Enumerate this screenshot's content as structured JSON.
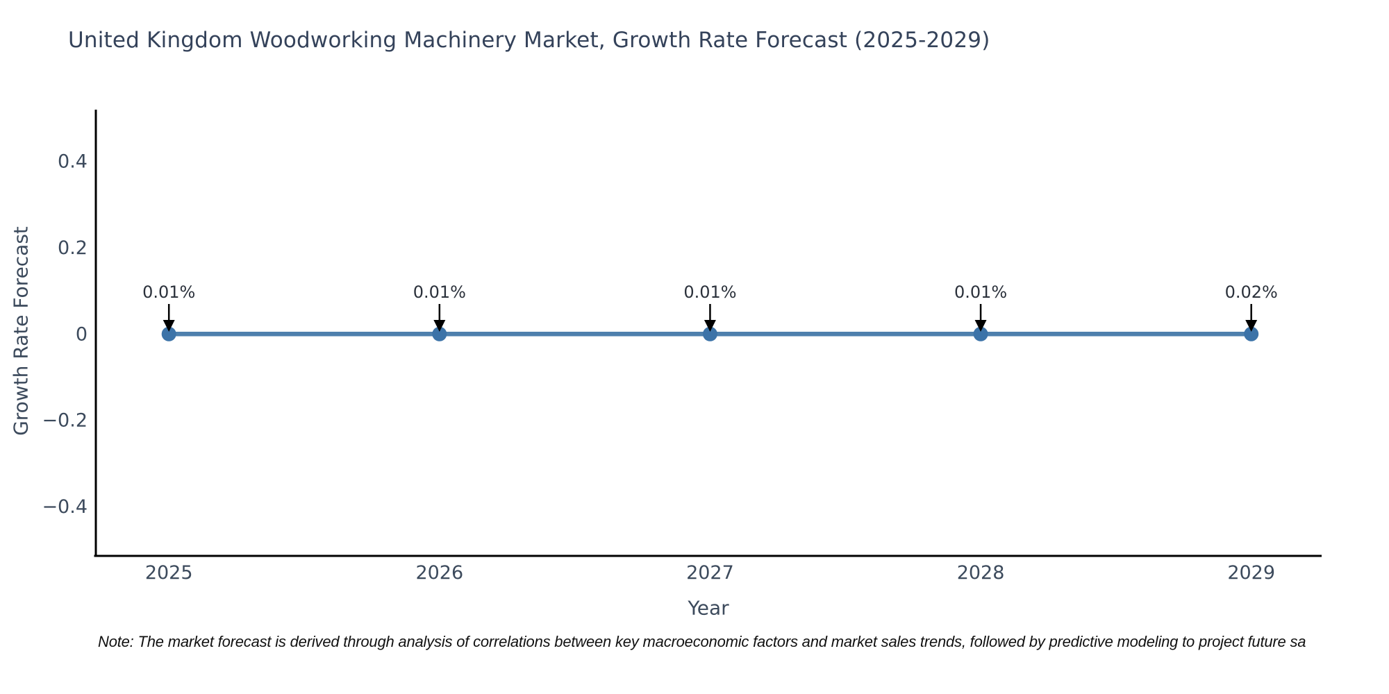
{
  "page": {
    "background": "#ffffff"
  },
  "note": "Note: The market forecast is derived through analysis of correlations between key macroeconomic factors and market sales trends, followed by predictive modeling to project future sa",
  "chart_data": {
    "type": "line",
    "title": "United Kingdom Woodworking Machinery Market, Growth Rate Forecast (2025-2029)",
    "xlabel": "Year",
    "ylabel": "Growth Rate Forecast",
    "x": [
      2025,
      2026,
      2027,
      2028,
      2029
    ],
    "series": [
      {
        "name": "Growth Rate Forecast",
        "values": [
          0.0001,
          0.0001,
          0.0001,
          0.0001,
          0.0002
        ]
      }
    ],
    "point_labels": [
      "0.01%",
      "0.01%",
      "0.01%",
      "0.01%",
      "0.02%"
    ],
    "xtick_labels": [
      "2025",
      "2026",
      "2027",
      "2028",
      "2029"
    ],
    "ytick_values": [
      0.4,
      0.2,
      0,
      -0.2,
      -0.4
    ],
    "ytick_labels": [
      "0.4",
      "0.2",
      "0",
      "−0.2",
      "−0.4"
    ],
    "xlim": [
      2024.73,
      2029.26
    ],
    "ylim": [
      -0.514,
      0.52
    ],
    "grid": false,
    "legend": "none",
    "annotation_style": "text-above-with-down-arrow",
    "colors": {
      "line": "#4e80ad",
      "marker": "#3c73a8",
      "axis": "#000000",
      "title_text": "#34425a",
      "tick_text": "#3c4a5c",
      "annotation_text": "#2b313b",
      "arrow": "#000000",
      "note_text": "#111111"
    }
  }
}
